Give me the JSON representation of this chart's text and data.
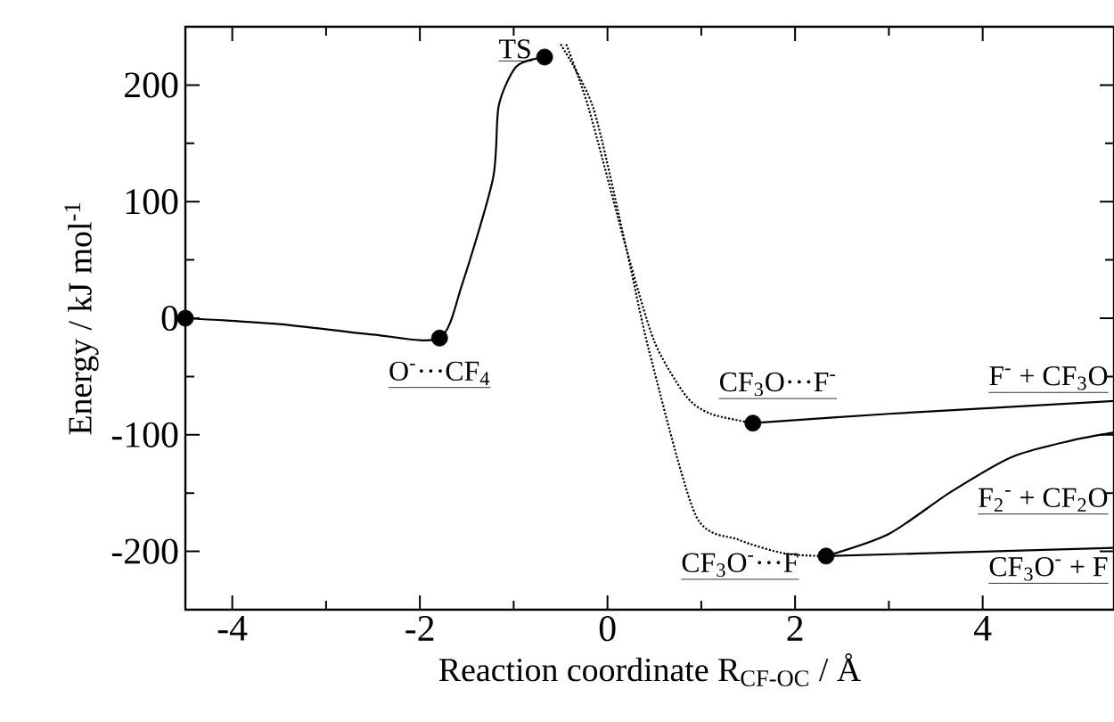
{
  "chart_data": {
    "type": "line",
    "xlabel": "Reaction coordinate R$_{CF-OC}$ / Å",
    "ylabel": "Energy / kJ mol$^{-1}$",
    "xlim": [
      -4.5,
      5.4
    ],
    "ylim": [
      -250,
      250
    ],
    "xticks": [
      -4,
      -2,
      0,
      2,
      4
    ],
    "yticks": [
      -200,
      -100,
      0,
      100,
      200
    ],
    "grid": false,
    "series": [
      {
        "color": "#000000",
        "line_style": "solid",
        "marker": "none",
        "x": [
          -4.5,
          -3.5,
          -2.5,
          -1.79,
          -1.55,
          -1.22,
          -1.16,
          -0.97,
          -0.67
        ],
        "values": [
          0,
          -5,
          -14,
          -17,
          29,
          120,
          182,
          216,
          224
        ]
      },
      {
        "color": "#000000",
        "line_style": "dotted",
        "marker": "none",
        "x": [
          -0.44,
          -0.2,
          0.2,
          0.5,
          0.84,
          1.1,
          1.55
        ],
        "values": [
          235,
          180,
          60,
          -20,
          -67,
          -82,
          -90
        ]
      },
      {
        "color": "#000000",
        "line_style": "dotted",
        "marker": "none",
        "x": [
          -0.5,
          -0.15,
          0.2,
          0.45,
          0.94,
          1.4,
          1.9,
          2.33
        ],
        "values": [
          235,
          180,
          60,
          -30,
          -169,
          -190,
          -202,
          -204
        ]
      },
      {
        "color": "#000000",
        "line_style": "solid",
        "marker": "none",
        "x": [
          1.55,
          3,
          5.4
        ],
        "values": [
          -90,
          -82,
          -71
        ]
      },
      {
        "color": "#000000",
        "line_style": "solid",
        "marker": "none",
        "x": [
          2.33,
          3,
          3.66,
          4.31,
          4.94,
          5.4
        ],
        "values": [
          -204,
          -185,
          -149,
          -119,
          -105,
          -98
        ]
      },
      {
        "color": "#000000",
        "line_style": "solid",
        "marker": "none",
        "x": [
          2.33,
          5.4
        ],
        "values": [
          -204,
          -197
        ]
      },
      {
        "type": "scatter",
        "color": "#000000",
        "marker": "circle",
        "x": [
          -4.5,
          -1.79,
          -0.67,
          1.55,
          2.33
        ],
        "values": [
          0,
          -17,
          224,
          -90,
          -204
        ]
      }
    ],
    "annotations": [
      {
        "text": "TS",
        "x": -0.67,
        "y": 224
      },
      {
        "text": "O$^{-}$···CF$_{4}$",
        "x": -1.79,
        "y": -17
      },
      {
        "text": "CF$_{3}$O···F$^{-}$",
        "x": 1.55,
        "y": -90
      },
      {
        "text": "CF$_{3}$O$^{-}$···F",
        "x": 2.33,
        "y": -204
      },
      {
        "text": "F$^{-}$ + CF$_{3}$O",
        "x": 5.4,
        "y": -71
      },
      {
        "text": "F$_{2}$$^{-}$ + CF$_{2}$O",
        "x": 5.4,
        "y": -98
      },
      {
        "text": "CF$_{3}$O$^{-}$ + F",
        "x": 5.4,
        "y": -197
      }
    ]
  }
}
